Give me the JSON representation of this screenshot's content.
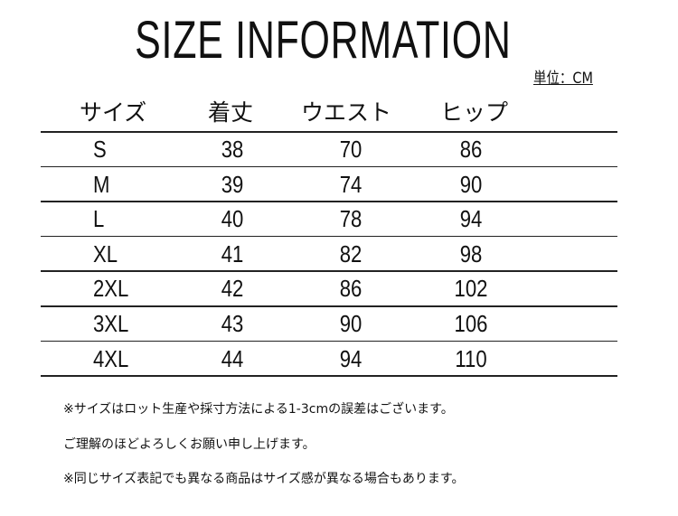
{
  "title": "SIZE INFORMATION",
  "unit": "単位：CM",
  "headers": [
    "サイズ",
    "着丈",
    "ウエスト",
    "ヒップ"
  ],
  "rows": [
    [
      "S",
      "38",
      "70",
      "86"
    ],
    [
      "M",
      "39",
      "74",
      "90"
    ],
    [
      "L",
      "40",
      "78",
      "94"
    ],
    [
      "XL",
      "41",
      "82",
      "98"
    ],
    [
      "2XL",
      "42",
      "86",
      "102"
    ],
    [
      "3XL",
      "43",
      "90",
      "106"
    ],
    [
      "4XL",
      "44",
      "94",
      "110"
    ]
  ],
  "notes": [
    "※サイズはロット生産や採寸方法による1-3cmの誤差はございます。",
    "ご理解のほどよろしくお願い申し上げます。",
    "※同じサイズ表記でも異なる商品はサイズ感が異なる場合もあります。"
  ]
}
